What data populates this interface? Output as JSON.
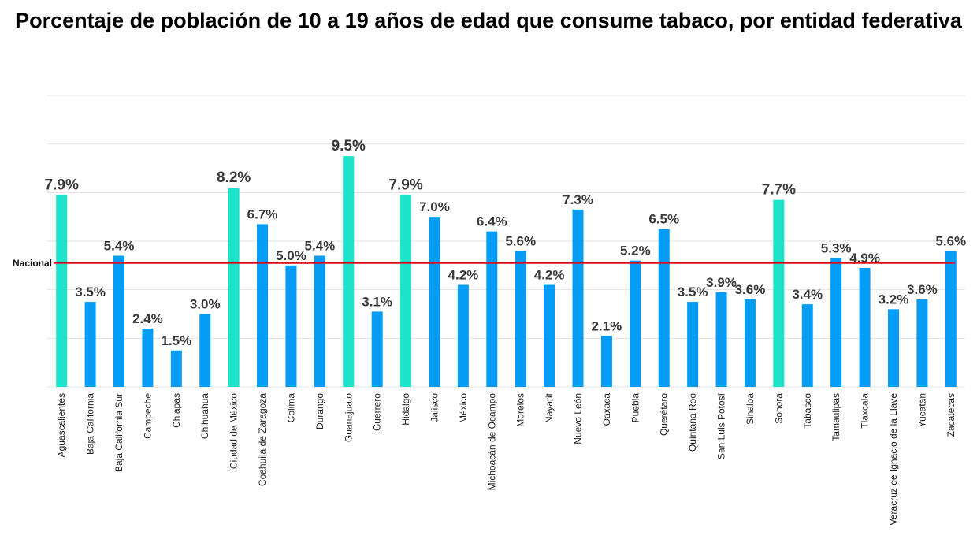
{
  "chart_data": {
    "type": "bar",
    "title": "Porcentaje de población de 10 a 19 años de edad que consume tabaco, por entidad federativa",
    "xlabel": "",
    "ylabel": "",
    "ylim": [
      0,
      12
    ],
    "y_gridlines": [
      0,
      2,
      4,
      6,
      8,
      10,
      12
    ],
    "grid": true,
    "y_tick_labels_visible": false,
    "categories": [
      "Aguascalientes",
      "Baja California",
      "Baja California Sur",
      "Campeche",
      "Chiapas",
      "Chihuahua",
      "Ciudad de México",
      "Coahuila de Zaragoza",
      "Colima",
      "Durango",
      "Guanajuato",
      "Guerrero",
      "Hidalgo",
      "Jalisco",
      "México",
      "Michoacán de Ocampo",
      "Morelos",
      "Nayarit",
      "Nuevo León",
      "Oaxaca",
      "Puebla",
      "Querétaro",
      "Quintana Roo",
      "San Luis Potosí",
      "Sinaloa",
      "Sonora",
      "Tabasco",
      "Tamaulipas",
      "Tlaxcala",
      "Veracruz de Ignacio de la Llave",
      "Yucatán",
      "Zacatecas"
    ],
    "values": [
      7.9,
      3.5,
      5.4,
      2.4,
      1.5,
      3.0,
      8.2,
      6.7,
      5.0,
      5.4,
      9.5,
      3.1,
      7.9,
      7.0,
      4.2,
      6.4,
      5.6,
      4.2,
      7.3,
      2.1,
      5.2,
      6.5,
      3.5,
      3.9,
      3.6,
      7.7,
      3.4,
      5.3,
      4.9,
      3.2,
      3.6,
      5.6
    ],
    "labels": [
      "7.9%",
      "3.5%",
      "5.4%",
      "2.4%",
      "1.5%",
      "3.0%",
      "8.2%",
      "6.7%",
      "5.0%",
      "5.4%",
      "9.5%",
      "3.1%",
      "7.9%",
      "7.0%",
      "4.2%",
      "6.4%",
      "5.6%",
      "4.2%",
      "7.3%",
      "2.1%",
      "5.2%",
      "6.5%",
      "3.5%",
      "3.9%",
      "3.6%",
      "7.7%",
      "3.4%",
      "5.3%",
      "4.9%",
      "3.2%",
      "3.6%",
      "5.6%"
    ],
    "highlighted": [
      "Aguascalientes",
      "Ciudad de México",
      "Guanajuato",
      "Hidalgo",
      "Sonora"
    ],
    "reference_line": {
      "label": "Nacional",
      "value": 5.1
    },
    "colors": {
      "bar": "#049cf4",
      "highlight": "#1de3cb",
      "reference": "#d7101e",
      "grid": "#e3e3e3"
    }
  }
}
